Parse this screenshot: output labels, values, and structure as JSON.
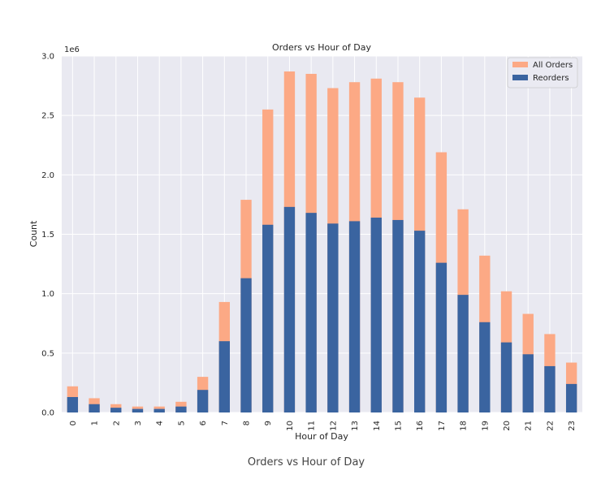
{
  "figure": {
    "caption": "Orders vs Hour of Day"
  },
  "chart_data": {
    "type": "bar",
    "stacked": false,
    "overlaid": true,
    "title": "Orders vs Hour of Day",
    "xlabel": "Hour of Day",
    "ylabel": "Count",
    "y_multiplier_label": "1e6",
    "categories": [
      "0",
      "1",
      "2",
      "3",
      "4",
      "5",
      "6",
      "7",
      "8",
      "9",
      "10",
      "11",
      "12",
      "13",
      "14",
      "15",
      "16",
      "17",
      "18",
      "19",
      "20",
      "21",
      "22",
      "23"
    ],
    "ylim": [
      0,
      3.0
    ],
    "yticks": [
      "0.0",
      "0.5",
      "1.0",
      "1.5",
      "2.0",
      "2.5",
      "3.0"
    ],
    "series": [
      {
        "name": "All Orders",
        "color": "#fca985",
        "values": [
          0.22,
          0.12,
          0.07,
          0.05,
          0.05,
          0.09,
          0.3,
          0.93,
          1.79,
          2.55,
          2.87,
          2.85,
          2.73,
          2.78,
          2.81,
          2.78,
          2.65,
          2.19,
          1.71,
          1.32,
          1.02,
          0.83,
          0.66,
          0.42
        ]
      },
      {
        "name": "Reorders",
        "color": "#3a64a0",
        "values": [
          0.13,
          0.07,
          0.04,
          0.03,
          0.03,
          0.05,
          0.19,
          0.6,
          1.13,
          1.58,
          1.73,
          1.68,
          1.59,
          1.61,
          1.64,
          1.62,
          1.53,
          1.26,
          0.99,
          0.76,
          0.59,
          0.49,
          0.39,
          0.24
        ]
      }
    ],
    "legend": "top-right",
    "grid": true
  }
}
